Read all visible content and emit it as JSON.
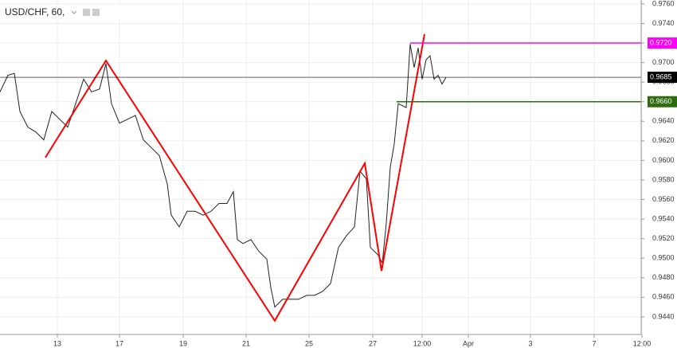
{
  "chart_data": {
    "type": "line",
    "title": "USD/CHF, 60,",
    "xlim": [
      0,
      805
    ],
    "ylim": [
      0.9422,
      0.9764
    ],
    "grid": true,
    "xticks": [
      {
        "value": 72,
        "label": "13"
      },
      {
        "value": 150,
        "label": "17"
      },
      {
        "value": 230,
        "label": "19"
      },
      {
        "value": 309,
        "label": "21"
      },
      {
        "value": 388,
        "label": "25"
      },
      {
        "value": 468,
        "label": "27"
      },
      {
        "value": 530,
        "label": "12:00"
      },
      {
        "value": 588,
        "label": "Apr"
      },
      {
        "value": 666,
        "label": "3"
      },
      {
        "value": 746,
        "label": "7"
      },
      {
        "value": 806,
        "label": "12:00"
      }
    ],
    "yticks": [
      {
        "value": 0.944,
        "label": "0.9440"
      },
      {
        "value": 0.946,
        "label": "0.9460"
      },
      {
        "value": 0.948,
        "label": "0.9480"
      },
      {
        "value": 0.95,
        "label": "0.9500"
      },
      {
        "value": 0.952,
        "label": "0.9520"
      },
      {
        "value": 0.954,
        "label": "0.9540"
      },
      {
        "value": 0.956,
        "label": "0.9560"
      },
      {
        "value": 0.958,
        "label": "0.9580"
      },
      {
        "value": 0.96,
        "label": "0.9600"
      },
      {
        "value": 0.962,
        "label": "0.9620"
      },
      {
        "value": 0.964,
        "label": "0.9640"
      },
      {
        "value": 0.966,
        "label": "0.9660"
      },
      {
        "value": 0.968,
        "label": "0.9680"
      },
      {
        "value": 0.97,
        "label": "0.9700"
      },
      {
        "value": 0.972,
        "label": "0.9720"
      },
      {
        "value": 0.974,
        "label": "0.9740"
      },
      {
        "value": 0.976,
        "label": "0.9760"
      }
    ],
    "series": [
      {
        "color": "#222222",
        "x": [
          0,
          10,
          18,
          25,
          35,
          45,
          55,
          65,
          75,
          85,
          95,
          105,
          115,
          125,
          133,
          140,
          150,
          160,
          170,
          180,
          190,
          200,
          210,
          215,
          225,
          235,
          245,
          255,
          265,
          275,
          285,
          293,
          298,
          305,
          315,
          325,
          335,
          340,
          345,
          355,
          365,
          375,
          385,
          395,
          405,
          415,
          425,
          435,
          445,
          452,
          460,
          465,
          475,
          480,
          485,
          490,
          495,
          500,
          510,
          515,
          520,
          525,
          530,
          535,
          540,
          545,
          550,
          555,
          560
        ],
        "values": [
          0.967,
          0.9687,
          0.9689,
          0.965,
          0.9634,
          0.9629,
          0.9621,
          0.965,
          0.9642,
          0.9634,
          0.9658,
          0.9683,
          0.967,
          0.9673,
          0.9699,
          0.9658,
          0.9638,
          0.9642,
          0.9646,
          0.9621,
          0.9613,
          0.9605,
          0.9576,
          0.9544,
          0.9532,
          0.9548,
          0.9548,
          0.9544,
          0.9548,
          0.9556,
          0.9556,
          0.9568,
          0.9519,
          0.9515,
          0.9519,
          0.9507,
          0.9499,
          0.947,
          0.945,
          0.9458,
          0.9458,
          0.9458,
          0.9462,
          0.9462,
          0.9466,
          0.9474,
          0.9511,
          0.9523,
          0.9532,
          0.9589,
          0.9581,
          0.9511,
          0.9503,
          0.9495,
          0.9536,
          0.9593,
          0.9617,
          0.9658,
          0.9654,
          0.9719,
          0.9695,
          0.9715,
          0.9683,
          0.9703,
          0.9707,
          0.9683,
          0.9687,
          0.9678,
          0.9685
        ]
      },
      {
        "color": "#ff0000",
        "x": [
          57,
          133,
          345,
          458,
          479,
          533
        ],
        "values": [
          0.9603,
          0.9702,
          0.9436,
          0.9597,
          0.9487,
          0.9729
        ]
      }
    ],
    "levels": [
      {
        "value": 0.972,
        "label": "0.9720",
        "color": "#ff00ff",
        "start": 515
      },
      {
        "value": 0.966,
        "label": "0.9660",
        "color": "#2e6b0e",
        "start": 498
      },
      {
        "value": 0.9685,
        "label": "0.9685",
        "color": "#000000",
        "start": 0
      }
    ]
  }
}
